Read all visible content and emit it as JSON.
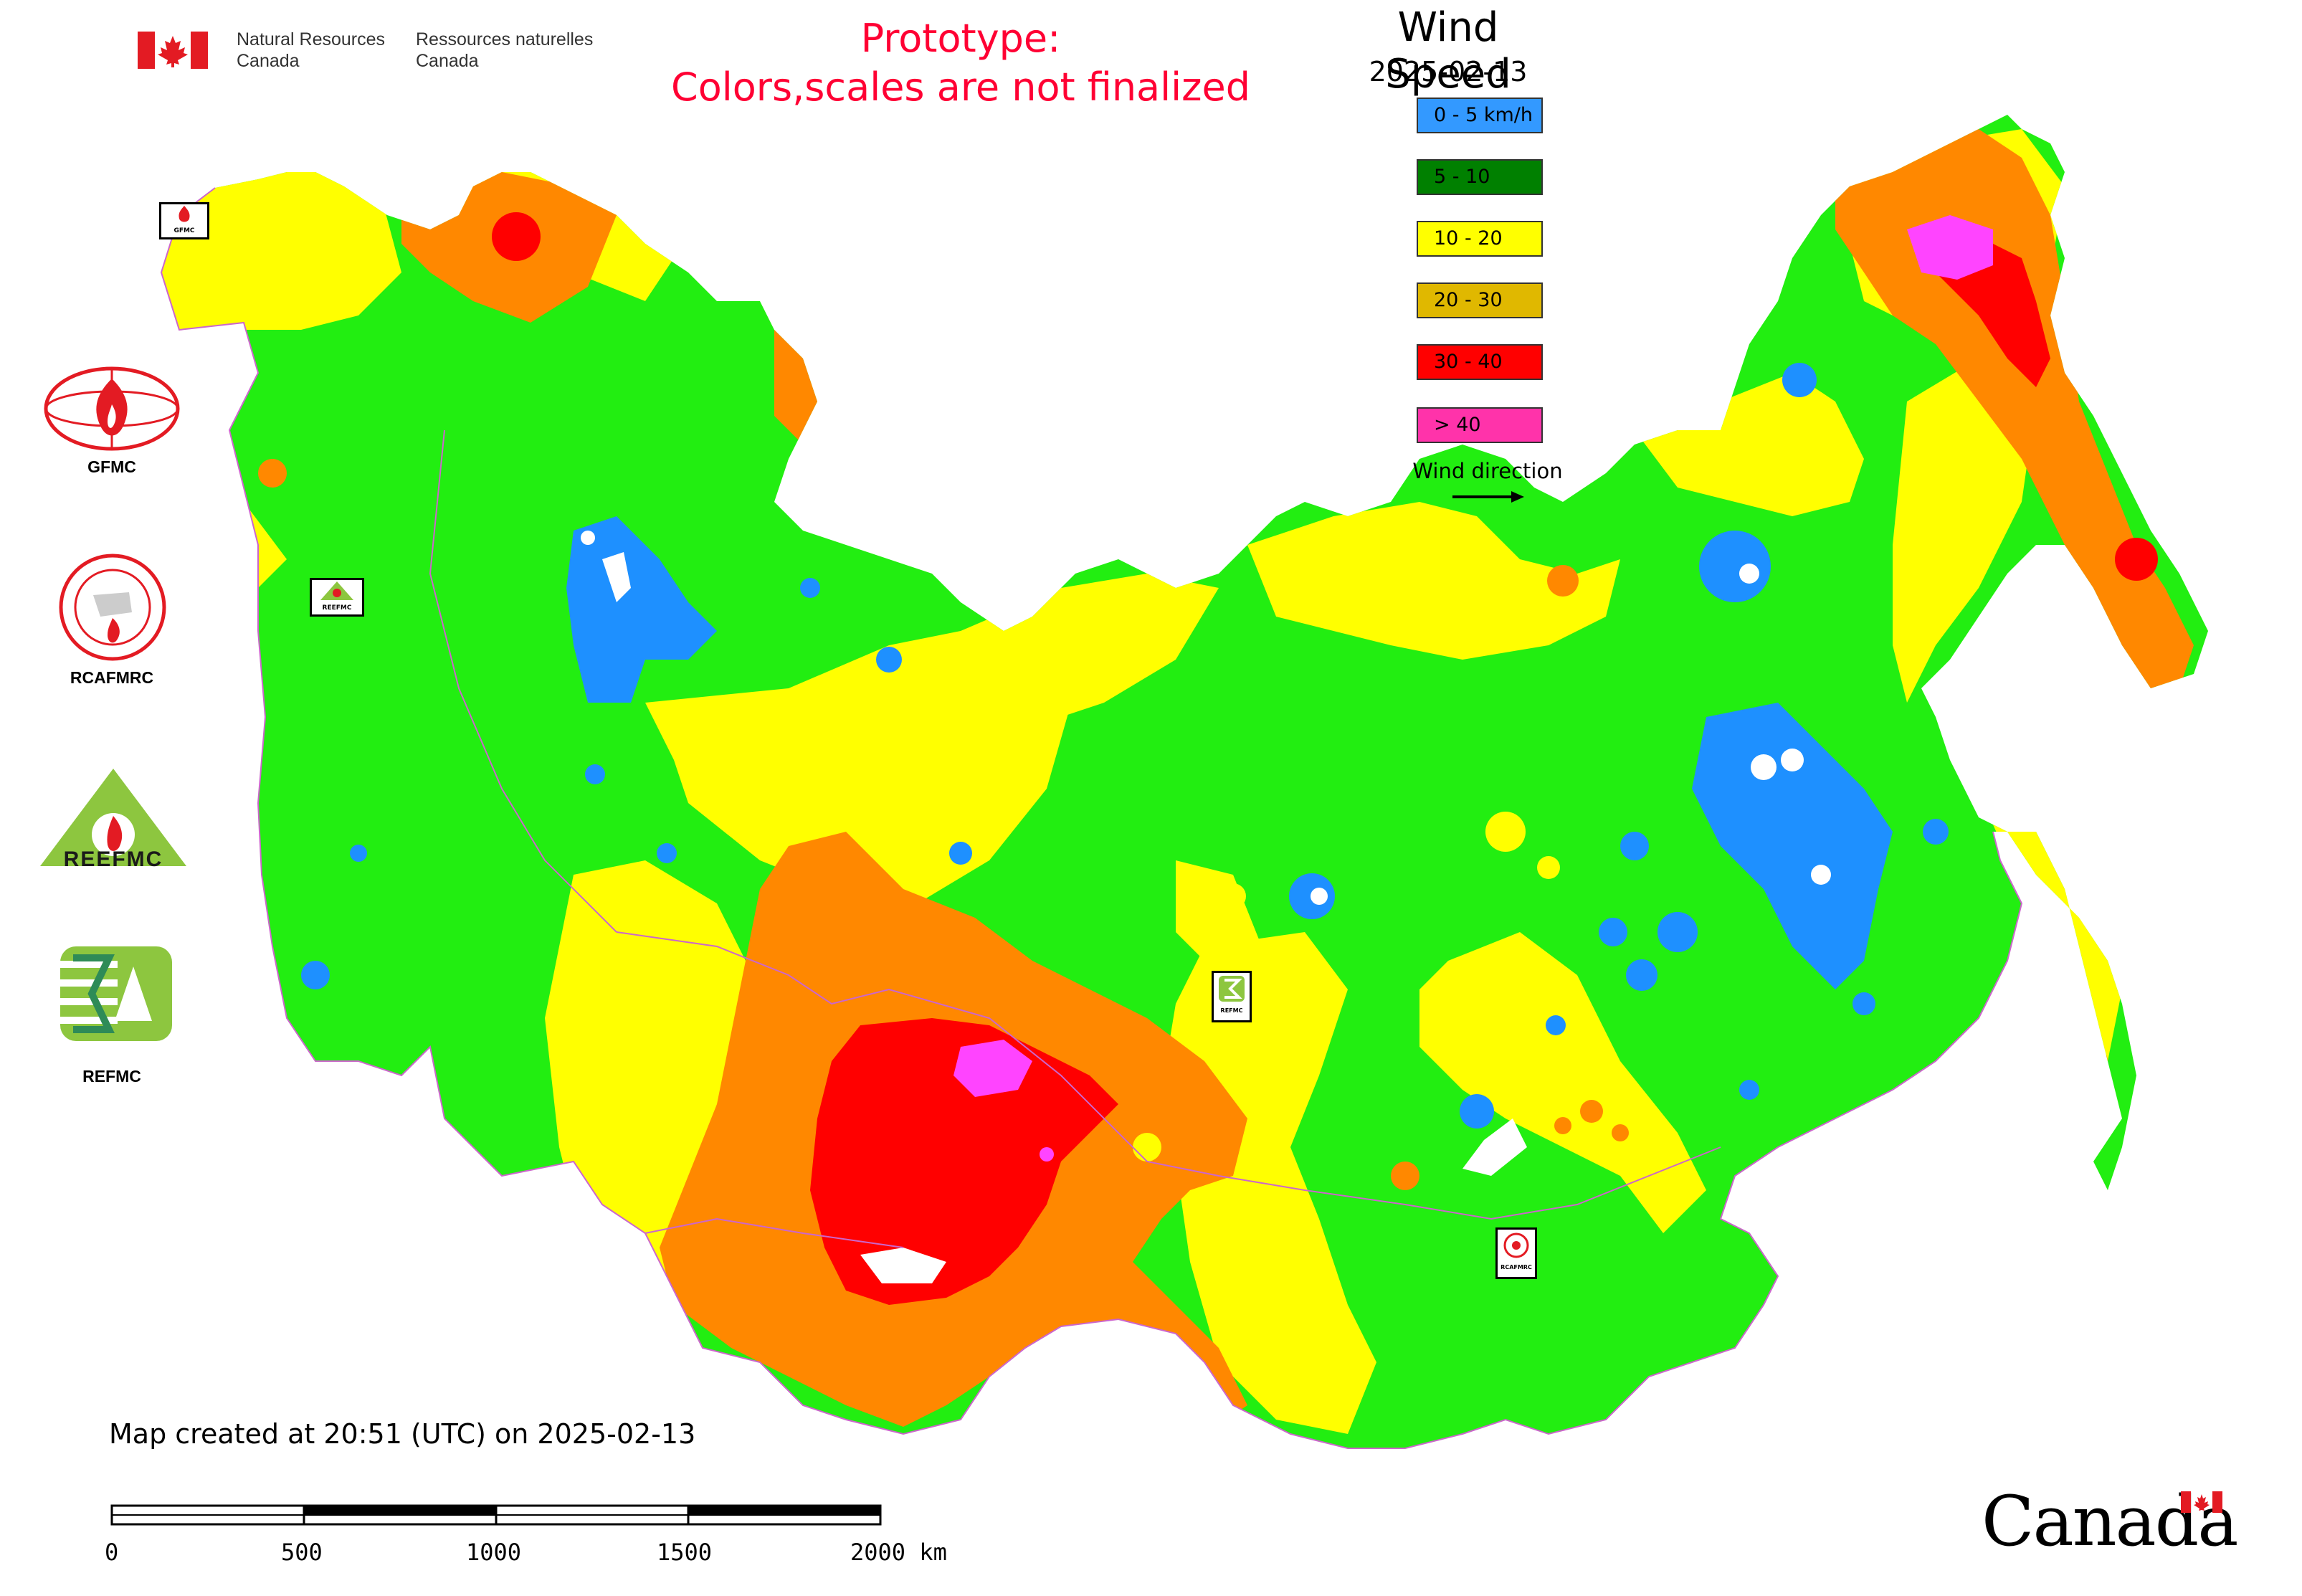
{
  "header": {
    "agency_en_line1": "Natural Resources",
    "agency_en_line2": "Canada",
    "agency_fr_line1": "Ressources naturelles",
    "agency_fr_line2": "Canada",
    "prototype_line1": "Prototype:",
    "prototype_line2": "Colors,scales are not finalized"
  },
  "legend": {
    "title": "Wind Speed",
    "date": "2025-02-13",
    "classes": [
      {
        "label": "0 - 5 km/h",
        "color": "#3399ff"
      },
      {
        "label": "5 - 10",
        "color": "#008000"
      },
      {
        "label": "10 - 20",
        "color": "#ffff00"
      },
      {
        "label": "20 - 30",
        "color": "#e0b800"
      },
      {
        "label": "30 - 40",
        "color": "#ff0000"
      },
      {
        "label": "> 40",
        "color": "#ff33aa"
      }
    ],
    "wind_direction_label": "Wind direction"
  },
  "map_colors": {
    "calm": "#1e90ff",
    "light": "#22ee11",
    "moderate": "#ffff00",
    "strong": "#ff8800",
    "very_strong": "#ff0000",
    "extreme": "#ff44ff",
    "border": "#cc66cc"
  },
  "side_logos": [
    {
      "label": "GFMC",
      "icon": "gfmc-logo-icon"
    },
    {
      "label": "RCAFMRC",
      "icon": "rcafmrc-logo-icon"
    },
    {
      "label": "REEFMC",
      "icon": "reefmc-logo-icon"
    },
    {
      "label": "REFMC",
      "icon": "refmc-logo-icon"
    }
  ],
  "map_markers": {
    "gfmc": "GFMC",
    "reefmc": "REEFMC",
    "refmc": "REFMC",
    "rcafmrc": "RCAFMRC"
  },
  "footer": {
    "created": "Map created at 20:51 (UTC) on 2025-02-13",
    "scale_ticks": [
      "0",
      "500",
      "1000",
      "1500",
      "2000 km"
    ],
    "wordmark": "Canada"
  }
}
